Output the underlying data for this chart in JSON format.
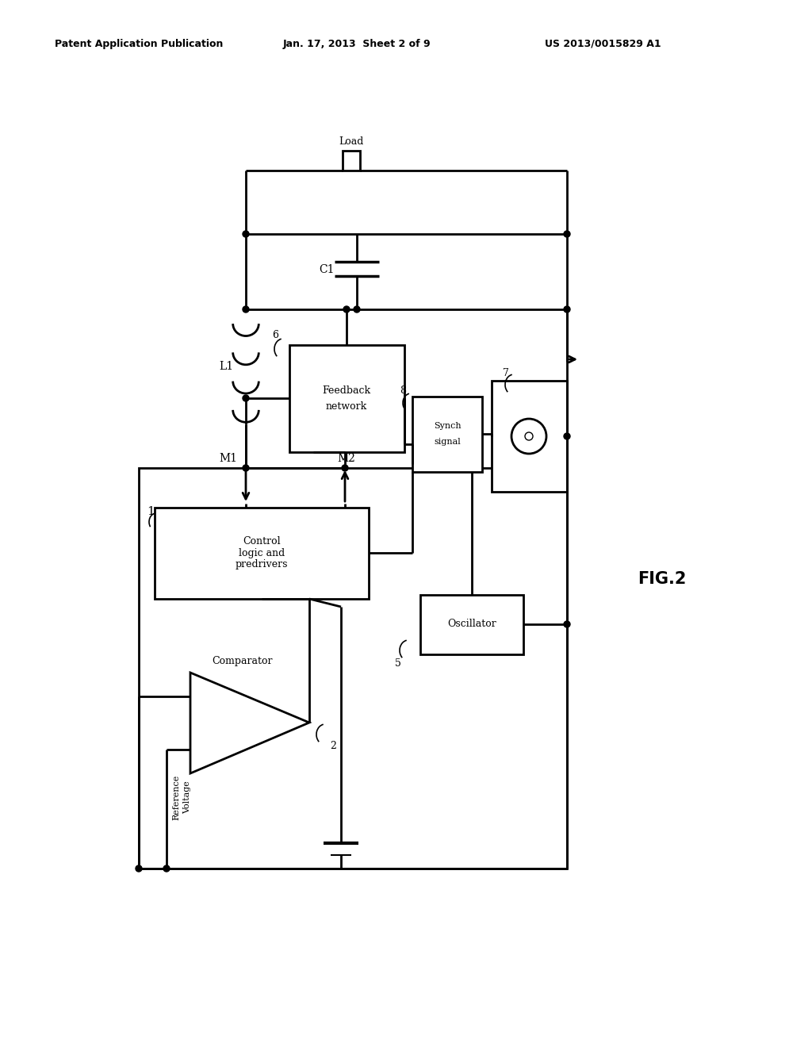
{
  "bg_color": "#ffffff",
  "line_color": "#000000",
  "line_width": 2.0,
  "header_left": "Patent Application Publication",
  "header_mid": "Jan. 17, 2013  Sheet 2 of 9",
  "header_right": "US 2013/0015829 A1",
  "fig_label": "FIG.2",
  "figsize": [
    10.24,
    13.2
  ],
  "dpi": 100
}
